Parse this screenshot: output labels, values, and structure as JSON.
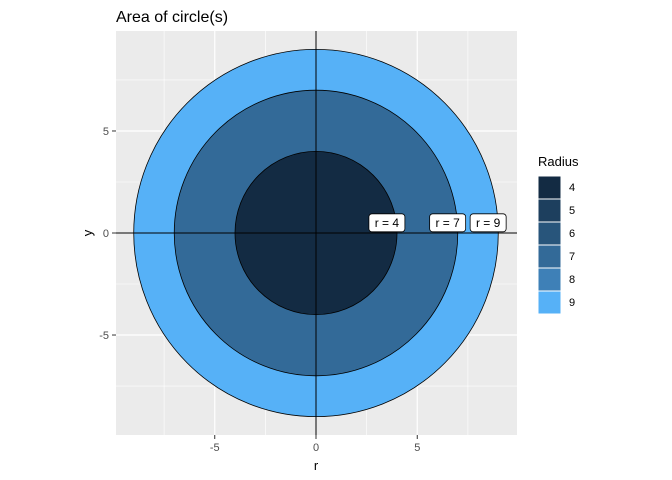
{
  "chart_data": {
    "type": "area",
    "title": "Area of circle(s)",
    "xlabel": "r",
    "ylabel": "y",
    "xlim": [
      -9.9,
      9.9
    ],
    "ylim": [
      -9.9,
      9.9
    ],
    "x_ticks": [
      -5,
      0,
      5
    ],
    "y_ticks": [
      -5,
      0,
      5
    ],
    "x_tick_labels": [
      "-5",
      "0",
      "5"
    ],
    "y_tick_labels": [
      "-5",
      "0",
      "5"
    ],
    "grid": true,
    "legend_position": "right",
    "legend_title": "Radius",
    "legend": [
      {
        "label": "4",
        "color": "#132B43"
      },
      {
        "label": "5",
        "color": "#1D3F5E"
      },
      {
        "label": "6",
        "color": "#28557B"
      },
      {
        "label": "7",
        "color": "#336A98"
      },
      {
        "label": "8",
        "color": "#3E80B7"
      },
      {
        "label": "9",
        "color": "#56B1F7"
      }
    ],
    "circles": [
      {
        "radius": 9,
        "color": "#56B1F7",
        "label": "r = 9",
        "label_x": 8.5,
        "label_y": 0.5
      },
      {
        "radius": 7,
        "color": "#336A98",
        "label": "r = 7",
        "label_x": 6.5,
        "label_y": 0.5
      },
      {
        "radius": 4,
        "color": "#132B43",
        "label": "r = 4",
        "label_x": 3.5,
        "label_y": 0.5
      }
    ],
    "panel_background": "#EBEBEB",
    "gridline_color": "#FFFFFF"
  }
}
